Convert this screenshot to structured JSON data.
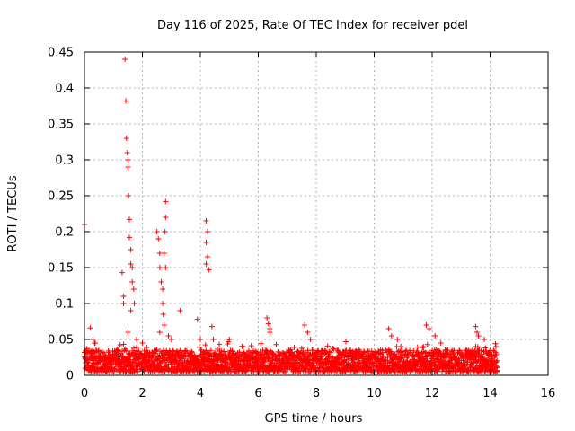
{
  "chart_data": {
    "type": "scatter",
    "title": "Day 116 of 2025, Rate Of TEC Index for receiver pdel",
    "xlabel": "GPS time / hours",
    "ylabel": "ROTI / TECUs",
    "xlim": [
      0,
      16
    ],
    "ylim": [
      0,
      0.45
    ],
    "x_ticks": [
      0,
      2,
      4,
      6,
      8,
      10,
      12,
      14,
      16
    ],
    "x_tick_labels": [
      "0",
      "2",
      "4",
      "6",
      "8",
      "10",
      "12",
      "14",
      "16"
    ],
    "y_ticks": [
      0,
      0.05,
      0.1,
      0.15,
      0.2,
      0.25,
      0.3,
      0.35,
      0.4,
      0.45
    ],
    "y_tick_labels": [
      "0",
      "0.05",
      "0.1",
      "0.15",
      "0.2",
      "0.25",
      "0.3",
      "0.35",
      "0.4",
      "0.45"
    ],
    "grid": true,
    "marker": "+",
    "color": "#ff0000",
    "background_band": {
      "description": "dense band of ROTI points between 0 and 14.25 hours",
      "x_range": [
        0,
        14.25
      ],
      "y_min": 0.005,
      "y_max_typical": 0.035
    },
    "series": [
      {
        "name": "ROTI",
        "points": [
          [
            0.0,
            0.21
          ],
          [
            0.2,
            0.066
          ],
          [
            0.3,
            0.05
          ],
          [
            0.35,
            0.045
          ],
          [
            1.3,
            0.143
          ],
          [
            1.35,
            0.11
          ],
          [
            1.35,
            0.1
          ],
          [
            1.4,
            0.44
          ],
          [
            1.43,
            0.382
          ],
          [
            1.45,
            0.33
          ],
          [
            1.48,
            0.31
          ],
          [
            1.5,
            0.3
          ],
          [
            1.5,
            0.29
          ],
          [
            1.52,
            0.25
          ],
          [
            1.55,
            0.217
          ],
          [
            1.55,
            0.192
          ],
          [
            1.6,
            0.175
          ],
          [
            1.6,
            0.155
          ],
          [
            1.65,
            0.15
          ],
          [
            1.65,
            0.13
          ],
          [
            1.7,
            0.12
          ],
          [
            1.72,
            0.1
          ],
          [
            1.6,
            0.09
          ],
          [
            1.5,
            0.06
          ],
          [
            1.8,
            0.05
          ],
          [
            2.0,
            0.045
          ],
          [
            2.5,
            0.2
          ],
          [
            2.55,
            0.19
          ],
          [
            2.6,
            0.17
          ],
          [
            2.6,
            0.15
          ],
          [
            2.65,
            0.13
          ],
          [
            2.7,
            0.12
          ],
          [
            2.7,
            0.1
          ],
          [
            2.72,
            0.085
          ],
          [
            2.75,
            0.07
          ],
          [
            2.8,
            0.242
          ],
          [
            2.8,
            0.22
          ],
          [
            2.78,
            0.2
          ],
          [
            2.75,
            0.17
          ],
          [
            2.8,
            0.15
          ],
          [
            2.6,
            0.06
          ],
          [
            2.9,
            0.055
          ],
          [
            3.0,
            0.05
          ],
          [
            3.3,
            0.09
          ],
          [
            3.9,
            0.078
          ],
          [
            4.0,
            0.05
          ],
          [
            4.2,
            0.215
          ],
          [
            4.25,
            0.2
          ],
          [
            4.2,
            0.185
          ],
          [
            4.25,
            0.165
          ],
          [
            4.3,
            0.147
          ],
          [
            4.2,
            0.155
          ],
          [
            4.4,
            0.068
          ],
          [
            4.45,
            0.05
          ],
          [
            5.0,
            0.05
          ],
          [
            6.3,
            0.08
          ],
          [
            6.35,
            0.072
          ],
          [
            6.4,
            0.065
          ],
          [
            6.4,
            0.06
          ],
          [
            7.6,
            0.07
          ],
          [
            7.7,
            0.06
          ],
          [
            7.8,
            0.05
          ],
          [
            10.5,
            0.065
          ],
          [
            10.6,
            0.055
          ],
          [
            10.8,
            0.05
          ],
          [
            11.8,
            0.07
          ],
          [
            11.9,
            0.065
          ],
          [
            12.1,
            0.055
          ],
          [
            12.3,
            0.045
          ],
          [
            13.5,
            0.068
          ],
          [
            13.55,
            0.06
          ],
          [
            13.6,
            0.055
          ],
          [
            13.8,
            0.05
          ],
          [
            14.2,
            0.04
          ]
        ]
      }
    ]
  }
}
